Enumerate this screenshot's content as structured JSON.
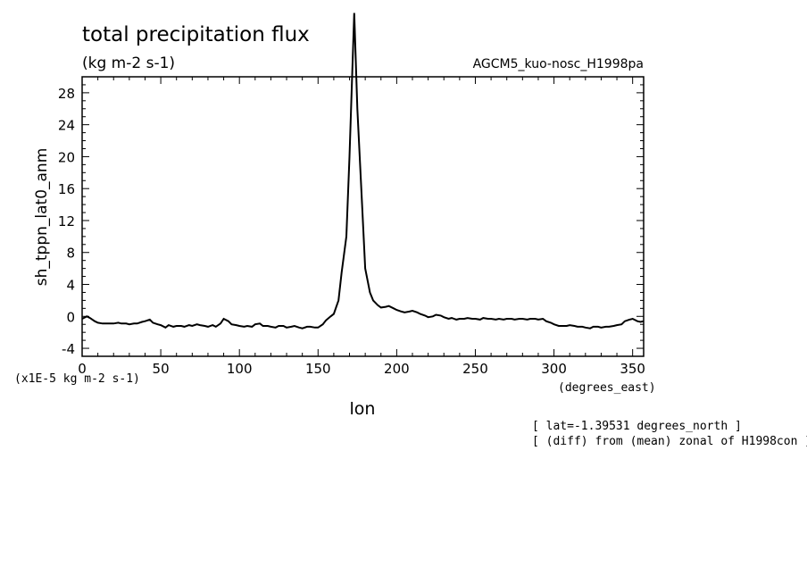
{
  "chart_data": {
    "type": "line",
    "title": "total precipitation flux",
    "subtitle": "(kg m-2 s-1)",
    "dataset_label": "AGCM5_kuo-nosc_H1998pa",
    "xlabel": "lon",
    "xunits": "(degrees_east)",
    "ylabel": "sh_tppn_lat0_anm",
    "yscale_note": "(x1E-5 kg m-2 s-1)",
    "notes": [
      "[ lat=-1.39531 degrees_north ]",
      "[ (diff) from (mean) zonal of H1998con ]"
    ],
    "xlim": [
      0,
      357
    ],
    "ylim": [
      -5,
      30
    ],
    "xticks": [
      0,
      50,
      100,
      150,
      200,
      250,
      300,
      350
    ],
    "yticks": [
      -4,
      0,
      4,
      8,
      12,
      16,
      20,
      24,
      28
    ],
    "series": [
      {
        "x": [
          0,
          3,
          5,
          8,
          10,
          13,
          15,
          18,
          20,
          23,
          25,
          28,
          30,
          33,
          35,
          38,
          40,
          43,
          45,
          48,
          50,
          53,
          55,
          58,
          60,
          63,
          65,
          68,
          70,
          73,
          75,
          78,
          80,
          83,
          85,
          88,
          90,
          93,
          95,
          98,
          100,
          103,
          105,
          108,
          110,
          113,
          115,
          118,
          120,
          123,
          125,
          128,
          130,
          133,
          135,
          138,
          140,
          143,
          145,
          148,
          150,
          153,
          155,
          158,
          160,
          163,
          165,
          168,
          170,
          173,
          175,
          178,
          180,
          183,
          185,
          188,
          190,
          193,
          195,
          198,
          200,
          203,
          205,
          208,
          210,
          213,
          215,
          218,
          220,
          223,
          225,
          228,
          230,
          233,
          235,
          238,
          240,
          243,
          245,
          248,
          250,
          253,
          255,
          258,
          260,
          263,
          265,
          268,
          270,
          273,
          275,
          278,
          280,
          283,
          285,
          288,
          290,
          293,
          295,
          298,
          300,
          303,
          305,
          308,
          310,
          313,
          315,
          318,
          320,
          323,
          325,
          328,
          330,
          333,
          335,
          338,
          340,
          343,
          345,
          348,
          350,
          353,
          355,
          357
        ],
        "y": [
          -0.3,
          0.0,
          -0.2,
          -0.6,
          -0.8,
          -0.9,
          -0.9,
          -0.9,
          -0.9,
          -0.8,
          -0.9,
          -0.9,
          -1.0,
          -0.9,
          -0.9,
          -0.7,
          -0.6,
          -0.4,
          -0.8,
          -1.0,
          -1.1,
          -1.4,
          -1.1,
          -1.3,
          -1.2,
          -1.2,
          -1.3,
          -1.1,
          -1.2,
          -1.0,
          -1.1,
          -1.2,
          -1.3,
          -1.1,
          -1.3,
          -0.9,
          -0.3,
          -0.6,
          -1.0,
          -1.1,
          -1.2,
          -1.3,
          -1.2,
          -1.3,
          -1.0,
          -0.9,
          -1.2,
          -1.2,
          -1.3,
          -1.4,
          -1.2,
          -1.2,
          -1.4,
          -1.3,
          -1.2,
          -1.4,
          -1.5,
          -1.3,
          -1.3,
          -1.4,
          -1.4,
          -1.0,
          -0.5,
          0.0,
          0.3,
          2.0,
          5.5,
          10.0,
          20.0,
          38.0,
          26.0,
          14.0,
          6.0,
          3.0,
          2.0,
          1.4,
          1.1,
          1.2,
          1.3,
          1.0,
          0.8,
          0.6,
          0.5,
          0.6,
          0.7,
          0.5,
          0.3,
          0.1,
          -0.1,
          0.0,
          0.2,
          0.1,
          -0.1,
          -0.3,
          -0.2,
          -0.4,
          -0.3,
          -0.3,
          -0.2,
          -0.3,
          -0.3,
          -0.4,
          -0.2,
          -0.3,
          -0.3,
          -0.4,
          -0.3,
          -0.4,
          -0.3,
          -0.3,
          -0.4,
          -0.3,
          -0.3,
          -0.4,
          -0.3,
          -0.3,
          -0.4,
          -0.3,
          -0.6,
          -0.8,
          -1.0,
          -1.2,
          -1.2,
          -1.2,
          -1.1,
          -1.2,
          -1.3,
          -1.3,
          -1.4,
          -1.5,
          -1.3,
          -1.3,
          -1.4,
          -1.3,
          -1.3,
          -1.2,
          -1.1,
          -1.0,
          -0.6,
          -0.4,
          -0.3,
          -0.6,
          -0.7,
          -0.6
        ]
      }
    ]
  }
}
